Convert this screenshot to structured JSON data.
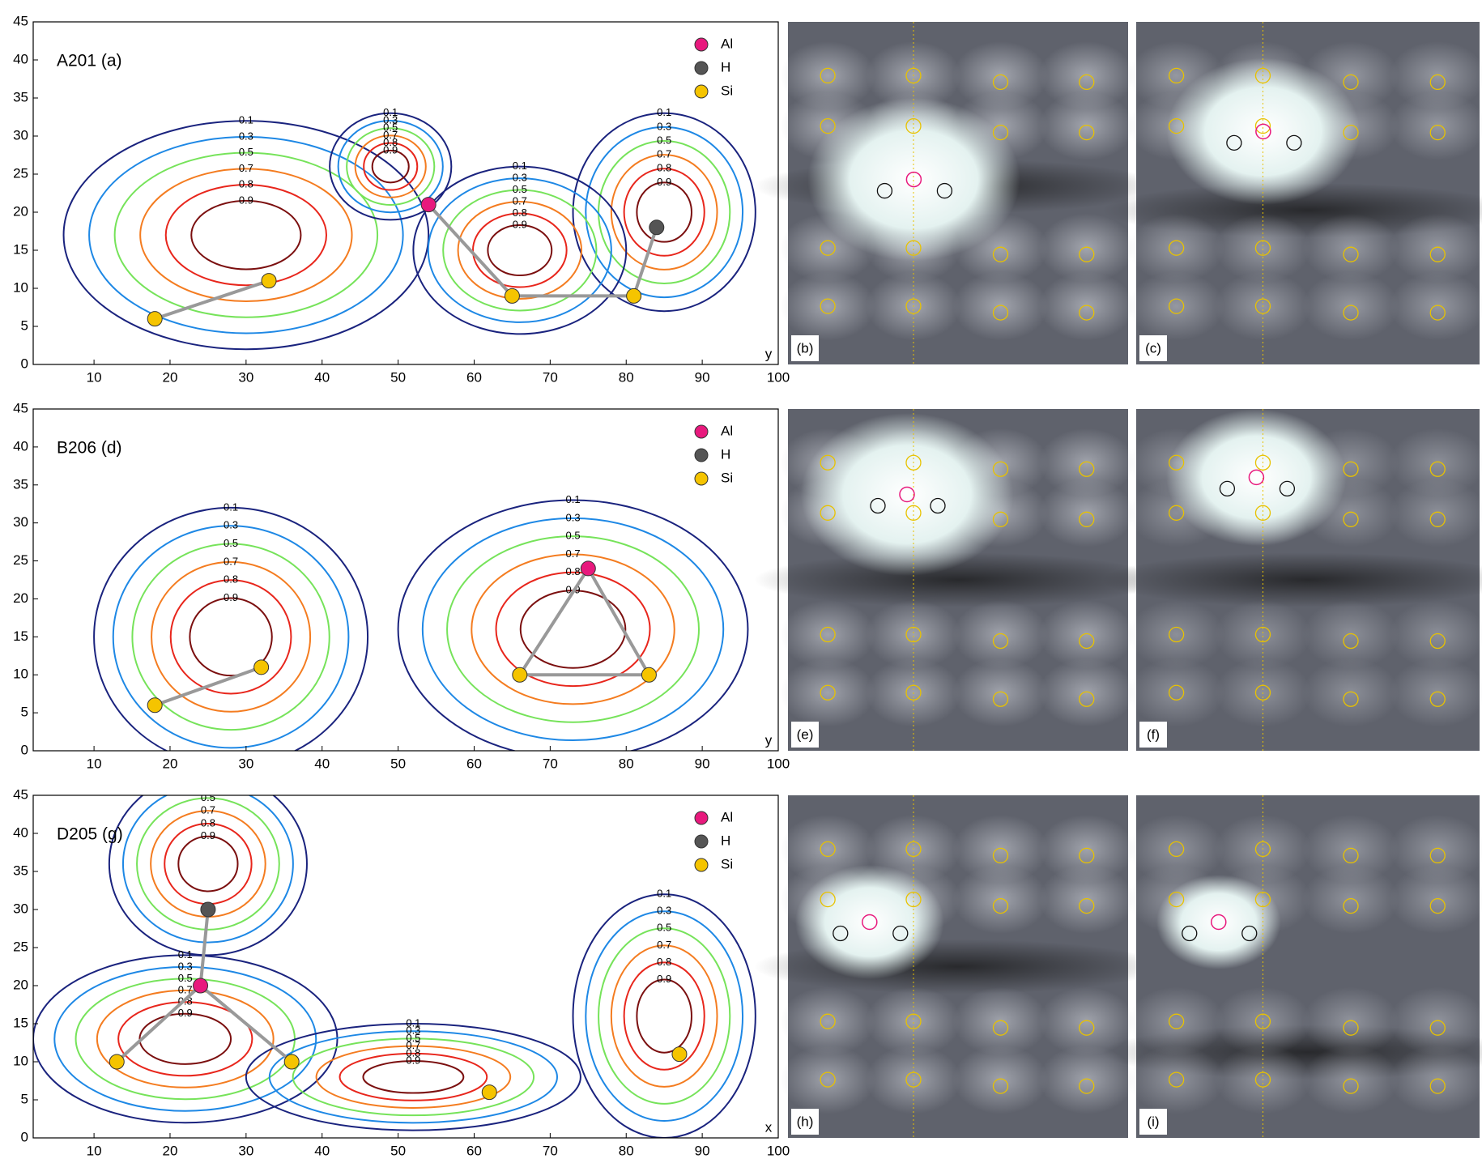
{
  "chart_data": [
    {
      "type": "contour",
      "title": "A201 (a)",
      "x_label": "y",
      "xlim": [
        2,
        100
      ],
      "xticks": [
        10,
        20,
        30,
        40,
        50,
        60,
        70,
        80,
        90,
        100
      ],
      "ylim": [
        0,
        45
      ],
      "yticks": [
        0,
        5,
        10,
        15,
        20,
        25,
        30,
        35,
        40,
        45
      ],
      "contour_levels": [
        0.1,
        0.3,
        0.5,
        0.7,
        0.8,
        0.9
      ],
      "contour_colors": [
        "#1a237e",
        "#1e88e5",
        "#76e35a",
        "#f47c20",
        "#e8261c",
        "#7b0f0f"
      ],
      "series": [
        {
          "name": "Al",
          "color": "#e8197d",
          "x": [
            54
          ],
          "y": [
            21
          ]
        },
        {
          "name": "H",
          "color": "#555555",
          "x": [
            84
          ],
          "y": [
            18
          ]
        },
        {
          "name": "Si",
          "color": "#f5c400",
          "x": [
            18,
            33,
            65,
            81
          ],
          "y": [
            6,
            11,
            9,
            9
          ]
        }
      ],
      "image_panels": [
        "(b)",
        "(c)"
      ]
    },
    {
      "type": "contour",
      "title": "B206 (d)",
      "x_label": "y",
      "xlim": [
        2,
        100
      ],
      "xticks": [
        10,
        20,
        30,
        40,
        50,
        60,
        70,
        80,
        90,
        100
      ],
      "ylim": [
        0,
        45
      ],
      "yticks": [
        0,
        5,
        10,
        15,
        20,
        25,
        30,
        35,
        40,
        45
      ],
      "contour_levels": [
        0.1,
        0.3,
        0.5,
        0.7,
        0.8,
        0.9
      ],
      "contour_colors": [
        "#1a237e",
        "#1e88e5",
        "#76e35a",
        "#f47c20",
        "#e8261c",
        "#7b0f0f"
      ],
      "series": [
        {
          "name": "Al",
          "color": "#e8197d",
          "x": [
            75
          ],
          "y": [
            24
          ]
        },
        {
          "name": "H",
          "color": "#555555",
          "x": [],
          "y": []
        },
        {
          "name": "Si",
          "color": "#f5c400",
          "x": [
            18,
            32,
            66,
            83
          ],
          "y": [
            6,
            11,
            10,
            10
          ]
        }
      ],
      "image_panels": [
        "(e)",
        "(f)"
      ]
    },
    {
      "type": "contour",
      "title": "D205 (g)",
      "x_label": "x",
      "xlim": [
        2,
        100
      ],
      "xticks": [
        10,
        20,
        30,
        40,
        50,
        60,
        70,
        80,
        90,
        100
      ],
      "ylim": [
        0,
        45
      ],
      "yticks": [
        0,
        5,
        10,
        15,
        20,
        25,
        30,
        35,
        40,
        45
      ],
      "contour_levels": [
        0.1,
        0.3,
        0.5,
        0.7,
        0.8,
        0.9
      ],
      "contour_colors": [
        "#1a237e",
        "#1e88e5",
        "#76e35a",
        "#f47c20",
        "#e8261c",
        "#7b0f0f"
      ],
      "series": [
        {
          "name": "Al",
          "color": "#e8197d",
          "x": [
            24
          ],
          "y": [
            20
          ]
        },
        {
          "name": "H",
          "color": "#555555",
          "x": [
            25
          ],
          "y": [
            30
          ]
        },
        {
          "name": "Si",
          "color": "#f5c400",
          "x": [
            13,
            36,
            62,
            87
          ],
          "y": [
            10,
            10,
            6,
            11
          ]
        }
      ],
      "image_panels": [
        "(h)",
        "(i)"
      ]
    }
  ]
}
